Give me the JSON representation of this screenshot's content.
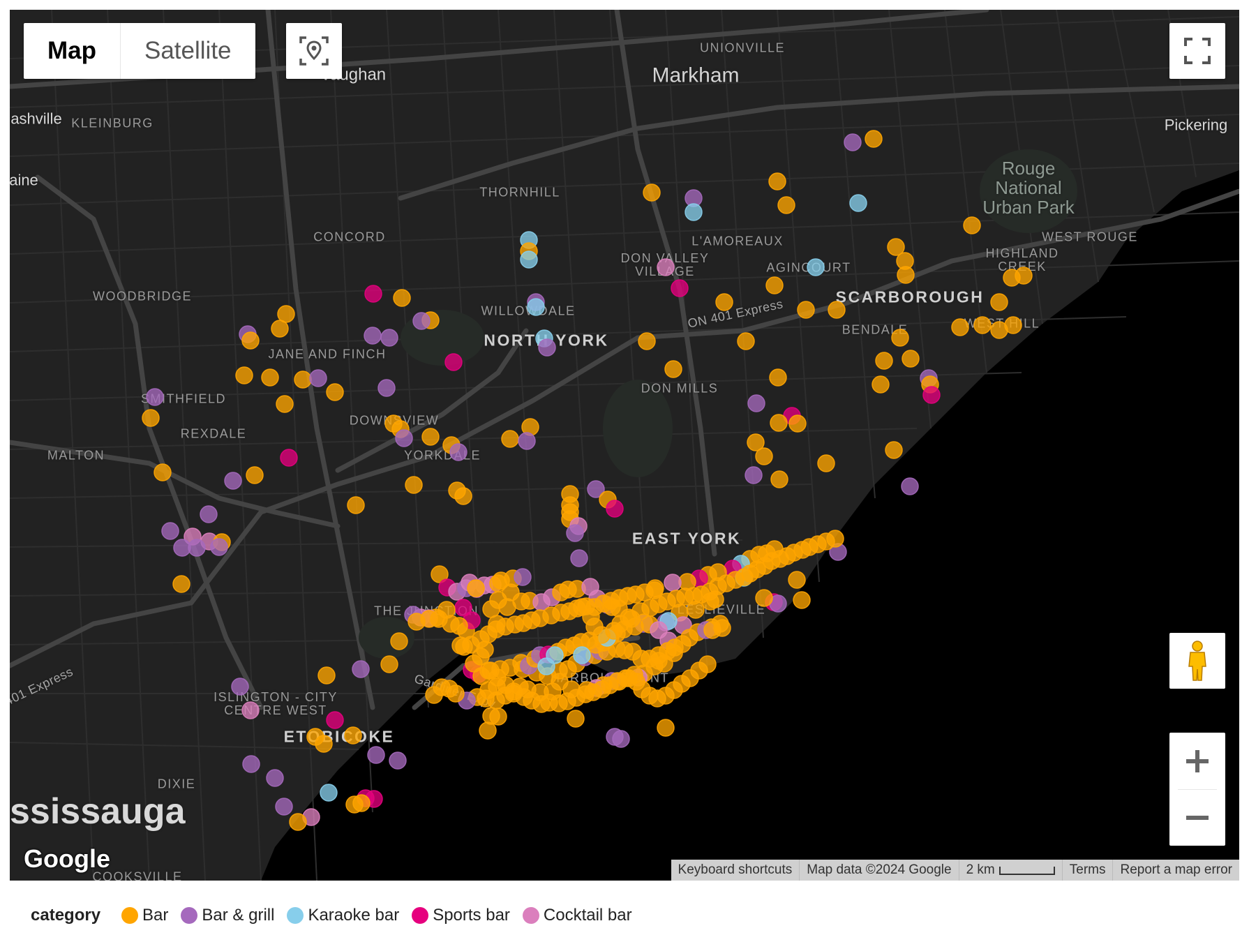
{
  "map_type": {
    "map_label": "Map",
    "satellite_label": "Satellite"
  },
  "place_labels": {
    "unionville": "UNIONVILLE",
    "vaughan": "Vaughan",
    "markham": "Markham",
    "nashville": "ashville",
    "kleinburg": "KLEINBURG",
    "pickering": "Pickering",
    "rouge_park": "Rouge\nNational\nUrban Park",
    "maine": "aine",
    "thornhill": "THORNHILL",
    "concord": "CONCORD",
    "lamoreaux": "L'AMOREAUX",
    "west_rouge": "WEST ROUGE",
    "don_valley_village": "DON VALLEY\nVILLAGE",
    "agincourt": "AGINCOURT",
    "highland_creek": "HIGHLAND\nCREEK",
    "woodbridge": "WOODBRIDGE",
    "willowdale": "WILLOWDALE",
    "scarborough": "SCARBOROUGH",
    "hwy_401": "ON 401 Express",
    "bendale": "BENDALE",
    "west_hill": "WEST HILL",
    "north_york": "NORTH YORK",
    "jane_and_finch": "JANE AND FINCH",
    "smithfield": "SMITHFIELD",
    "don_mills": "DON MILLS",
    "downsview": "DOWNSVIEW",
    "rexdale": "REXDALE",
    "yorkdale": "YORKDALE",
    "malton": "MALTON",
    "east_york": "EAST YORK",
    "the_junction": "THE JUNCTION",
    "leslieville": "LESLIEVILLE",
    "harbourfront": "HARBOURFRONT",
    "gardiner": "Gardiner Expy",
    "hwy_401_west": "401 Express",
    "islington": "ISLINGTON - CITY\nCENTRE WEST",
    "etobicoke": "ETOBICOKE",
    "dixie": "DIXIE",
    "mississauga": "ssissauga",
    "cooksville": "COOKSVILLE"
  },
  "attribution": {
    "logo": "Google",
    "keyboard": "Keyboard shortcuts",
    "map_data": "Map data ©2024 Google",
    "scale": "2 km",
    "terms": "Terms",
    "report": "Report a map error"
  },
  "legend": {
    "title": "category",
    "items": [
      {
        "label": "Bar",
        "color": "#FFA500"
      },
      {
        "label": "Bar & grill",
        "color": "#A569BD"
      },
      {
        "label": "Karaoke bar",
        "color": "#87CEEB"
      },
      {
        "label": "Sports bar",
        "color": "#E6007E"
      },
      {
        "label": "Cocktail bar",
        "color": "#DB7FBD"
      }
    ]
  },
  "icons": {
    "locate": "location-pin-icon",
    "fullscreen": "fullscreen-icon",
    "pegman": "street-view-pegman-icon",
    "zoom_in": "plus-icon",
    "zoom_out": "minus-icon"
  }
}
